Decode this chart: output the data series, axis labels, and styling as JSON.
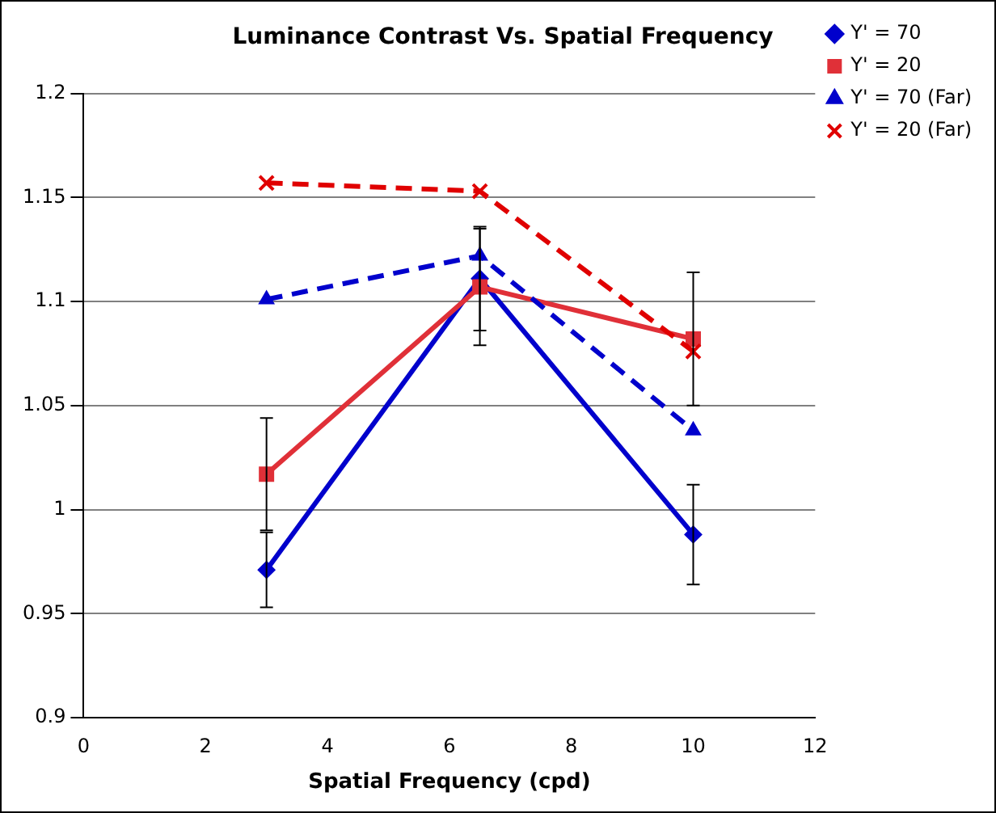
{
  "chart_data": {
    "type": "line",
    "title": "Luminance Contrast Vs. Spatial Frequency",
    "xlabel": "Spatial Frequency (cpd)",
    "xlim": [
      0,
      12
    ],
    "xticks": [
      0,
      2,
      4,
      6,
      8,
      10,
      12
    ],
    "ylim": [
      0.9,
      1.2
    ],
    "yticks": [
      0.9,
      0.95,
      1,
      1.05,
      1.1,
      1.15,
      1.2
    ],
    "grid": "y",
    "legend": "right",
    "series": [
      {
        "name": "Y' = 70",
        "color": "#0000cc",
        "marker": "diamond",
        "line_style": "solid",
        "x": [
          3,
          6.5,
          10
        ],
        "values": [
          0.971,
          1.111,
          0.988
        ],
        "errors": [
          0.018,
          0.025,
          0.024
        ]
      },
      {
        "name": "Y' = 20",
        "color": "#e03038",
        "marker": "square",
        "line_style": "solid",
        "x": [
          3,
          6.5,
          10
        ],
        "values": [
          1.017,
          1.107,
          1.082
        ],
        "errors": [
          0.027,
          0.028,
          0.032
        ]
      },
      {
        "name": "Y' = 70 (Far)",
        "color": "#0000cc",
        "marker": "triangle",
        "line_style": "dashed",
        "x": [
          3,
          6.5,
          10
        ],
        "values": [
          1.101,
          1.122,
          1.038
        ]
      },
      {
        "name": "Y' = 20 (Far)",
        "color": "#e00000",
        "marker": "cross",
        "line_style": "dashed",
        "x": [
          3,
          6.5,
          10
        ],
        "values": [
          1.157,
          1.153,
          1.076
        ]
      }
    ]
  }
}
